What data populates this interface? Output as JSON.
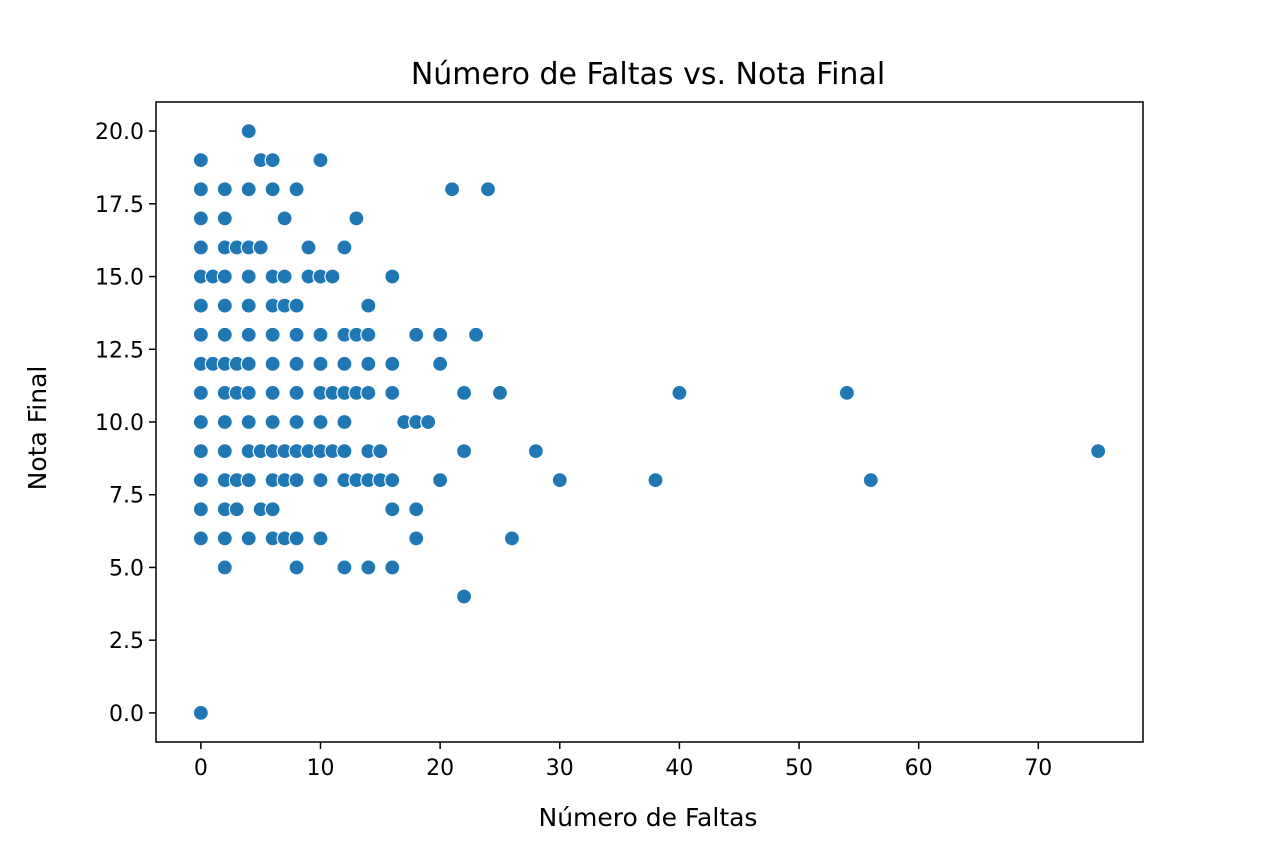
{
  "chart_data": {
    "type": "scatter",
    "title": "Número de Faltas vs. Nota Final",
    "xlabel": "Número de Faltas",
    "ylabel": "Nota Final",
    "xlim": [
      -3.75,
      78.75
    ],
    "ylim": [
      -1,
      21
    ],
    "xticks": [
      0,
      10,
      20,
      30,
      40,
      50,
      60,
      70
    ],
    "xtick_labels": [
      "0",
      "10",
      "20",
      "30",
      "40",
      "50",
      "60",
      "70"
    ],
    "yticks": [
      0,
      2.5,
      5,
      7.5,
      10,
      12.5,
      15,
      17.5,
      20
    ],
    "ytick_labels": [
      "0.0",
      "2.5",
      "5.0",
      "7.5",
      "10.0",
      "12.5",
      "15.0",
      "17.5",
      "20.0"
    ],
    "grid": false,
    "marker_color": "#1f77b4",
    "points_by_y": {
      "20": [
        4
      ],
      "19": [
        0,
        5,
        6,
        10
      ],
      "18": [
        0,
        2,
        4,
        6,
        8,
        21,
        24
      ],
      "17": [
        0,
        2,
        7,
        13
      ],
      "16": [
        0,
        2,
        3,
        4,
        5,
        9,
        12
      ],
      "15": [
        0,
        1,
        2,
        4,
        6,
        7,
        9,
        10,
        11,
        16
      ],
      "14": [
        0,
        2,
        4,
        6,
        7,
        8,
        14
      ],
      "13": [
        0,
        2,
        4,
        6,
        8,
        10,
        12,
        13,
        14,
        18,
        20,
        23
      ],
      "12": [
        0,
        1,
        2,
        3,
        4,
        6,
        8,
        10,
        12,
        14,
        16,
        20
      ],
      "11": [
        0,
        2,
        3,
        4,
        6,
        8,
        10,
        11,
        12,
        13,
        14,
        16,
        22,
        25,
        40,
        54
      ],
      "10": [
        0,
        2,
        4,
        6,
        8,
        10,
        12,
        17,
        18,
        19
      ],
      "9": [
        0,
        2,
        4,
        5,
        6,
        7,
        8,
        9,
        10,
        11,
        12,
        14,
        15,
        22,
        28,
        75
      ],
      "8": [
        0,
        2,
        3,
        4,
        6,
        7,
        8,
        10,
        12,
        13,
        14,
        15,
        16,
        20,
        30,
        38,
        56
      ],
      "7": [
        0,
        2,
        3,
        5,
        6,
        16,
        18
      ],
      "6": [
        0,
        2,
        4,
        6,
        7,
        8,
        10,
        18,
        26
      ],
      "5": [
        2,
        8,
        12,
        14,
        16
      ],
      "4": [
        22
      ],
      "0": [
        0
      ]
    }
  }
}
